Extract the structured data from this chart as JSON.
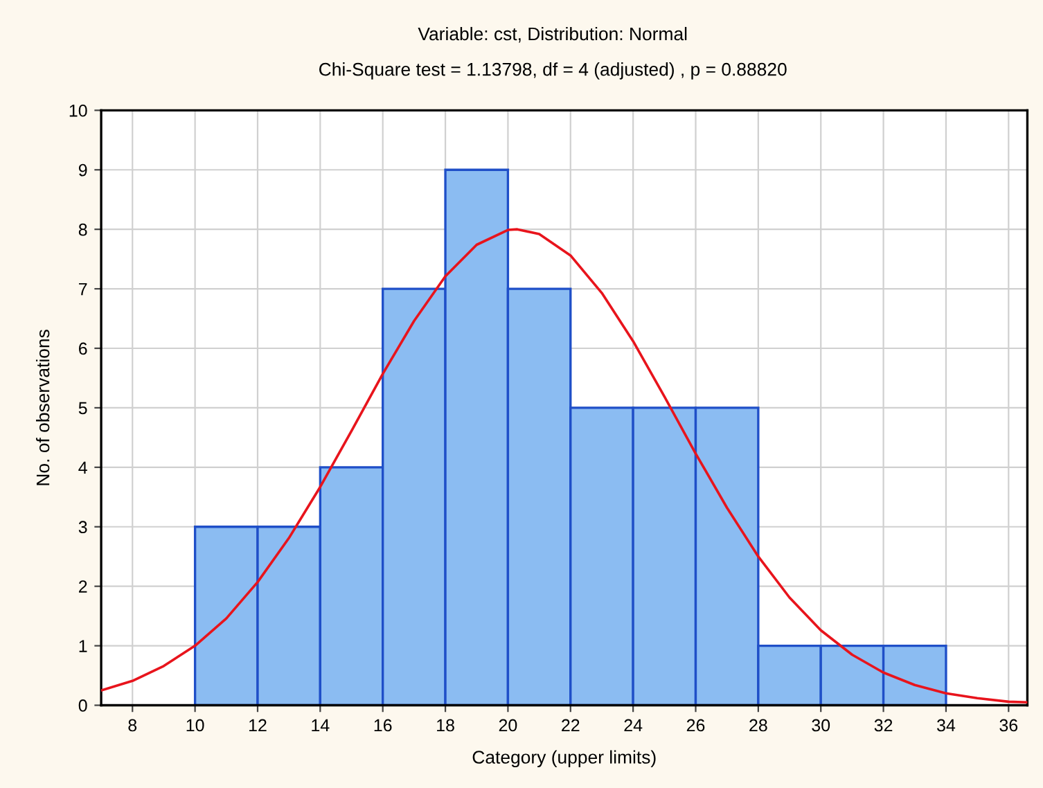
{
  "chart_data": {
    "type": "histogram",
    "title": "Variable: cst, Distribution: Normal",
    "subtitle": "Chi-Square test = 1.13798, df = 4 (adjusted) , p = 0.88820",
    "xlabel": "Category (upper limits)",
    "ylabel": "No. of observations",
    "bins": [
      10,
      12,
      14,
      16,
      18,
      20,
      22,
      24,
      26,
      28,
      30,
      32,
      34
    ],
    "values": [
      3,
      3,
      4,
      7,
      9,
      7,
      5,
      5,
      5,
      1,
      1,
      1
    ],
    "color": "#8bbcf2",
    "series": [
      {
        "type": "line",
        "color": "#e8141c",
        "x": [
          7,
          8,
          9,
          10,
          11,
          12,
          13,
          14,
          15,
          16,
          17,
          18,
          19,
          20,
          20.3,
          21,
          22,
          23,
          24,
          25,
          26,
          27,
          28,
          29,
          30,
          31,
          32,
          33,
          34,
          35,
          36,
          36.6
        ],
        "values": [
          0.25,
          0.41,
          0.66,
          1.0,
          1.46,
          2.07,
          2.81,
          3.67,
          4.61,
          5.57,
          6.46,
          7.21,
          7.74,
          7.99,
          8.0,
          7.92,
          7.56,
          6.93,
          6.12,
          5.19,
          4.23,
          3.32,
          2.5,
          1.81,
          1.26,
          0.85,
          0.55,
          0.34,
          0.2,
          0.12,
          0.06,
          0.05
        ]
      }
    ],
    "xlim": [
      7,
      36.6
    ],
    "xticks": [
      8,
      10,
      12,
      14,
      16,
      18,
      20,
      22,
      24,
      26,
      28,
      30,
      32,
      34,
      36
    ],
    "ylim": [
      0,
      10
    ],
    "yticks": [
      0,
      1,
      2,
      3,
      4,
      5,
      6,
      7,
      8,
      9,
      10
    ],
    "grid": true,
    "legend": false
  }
}
